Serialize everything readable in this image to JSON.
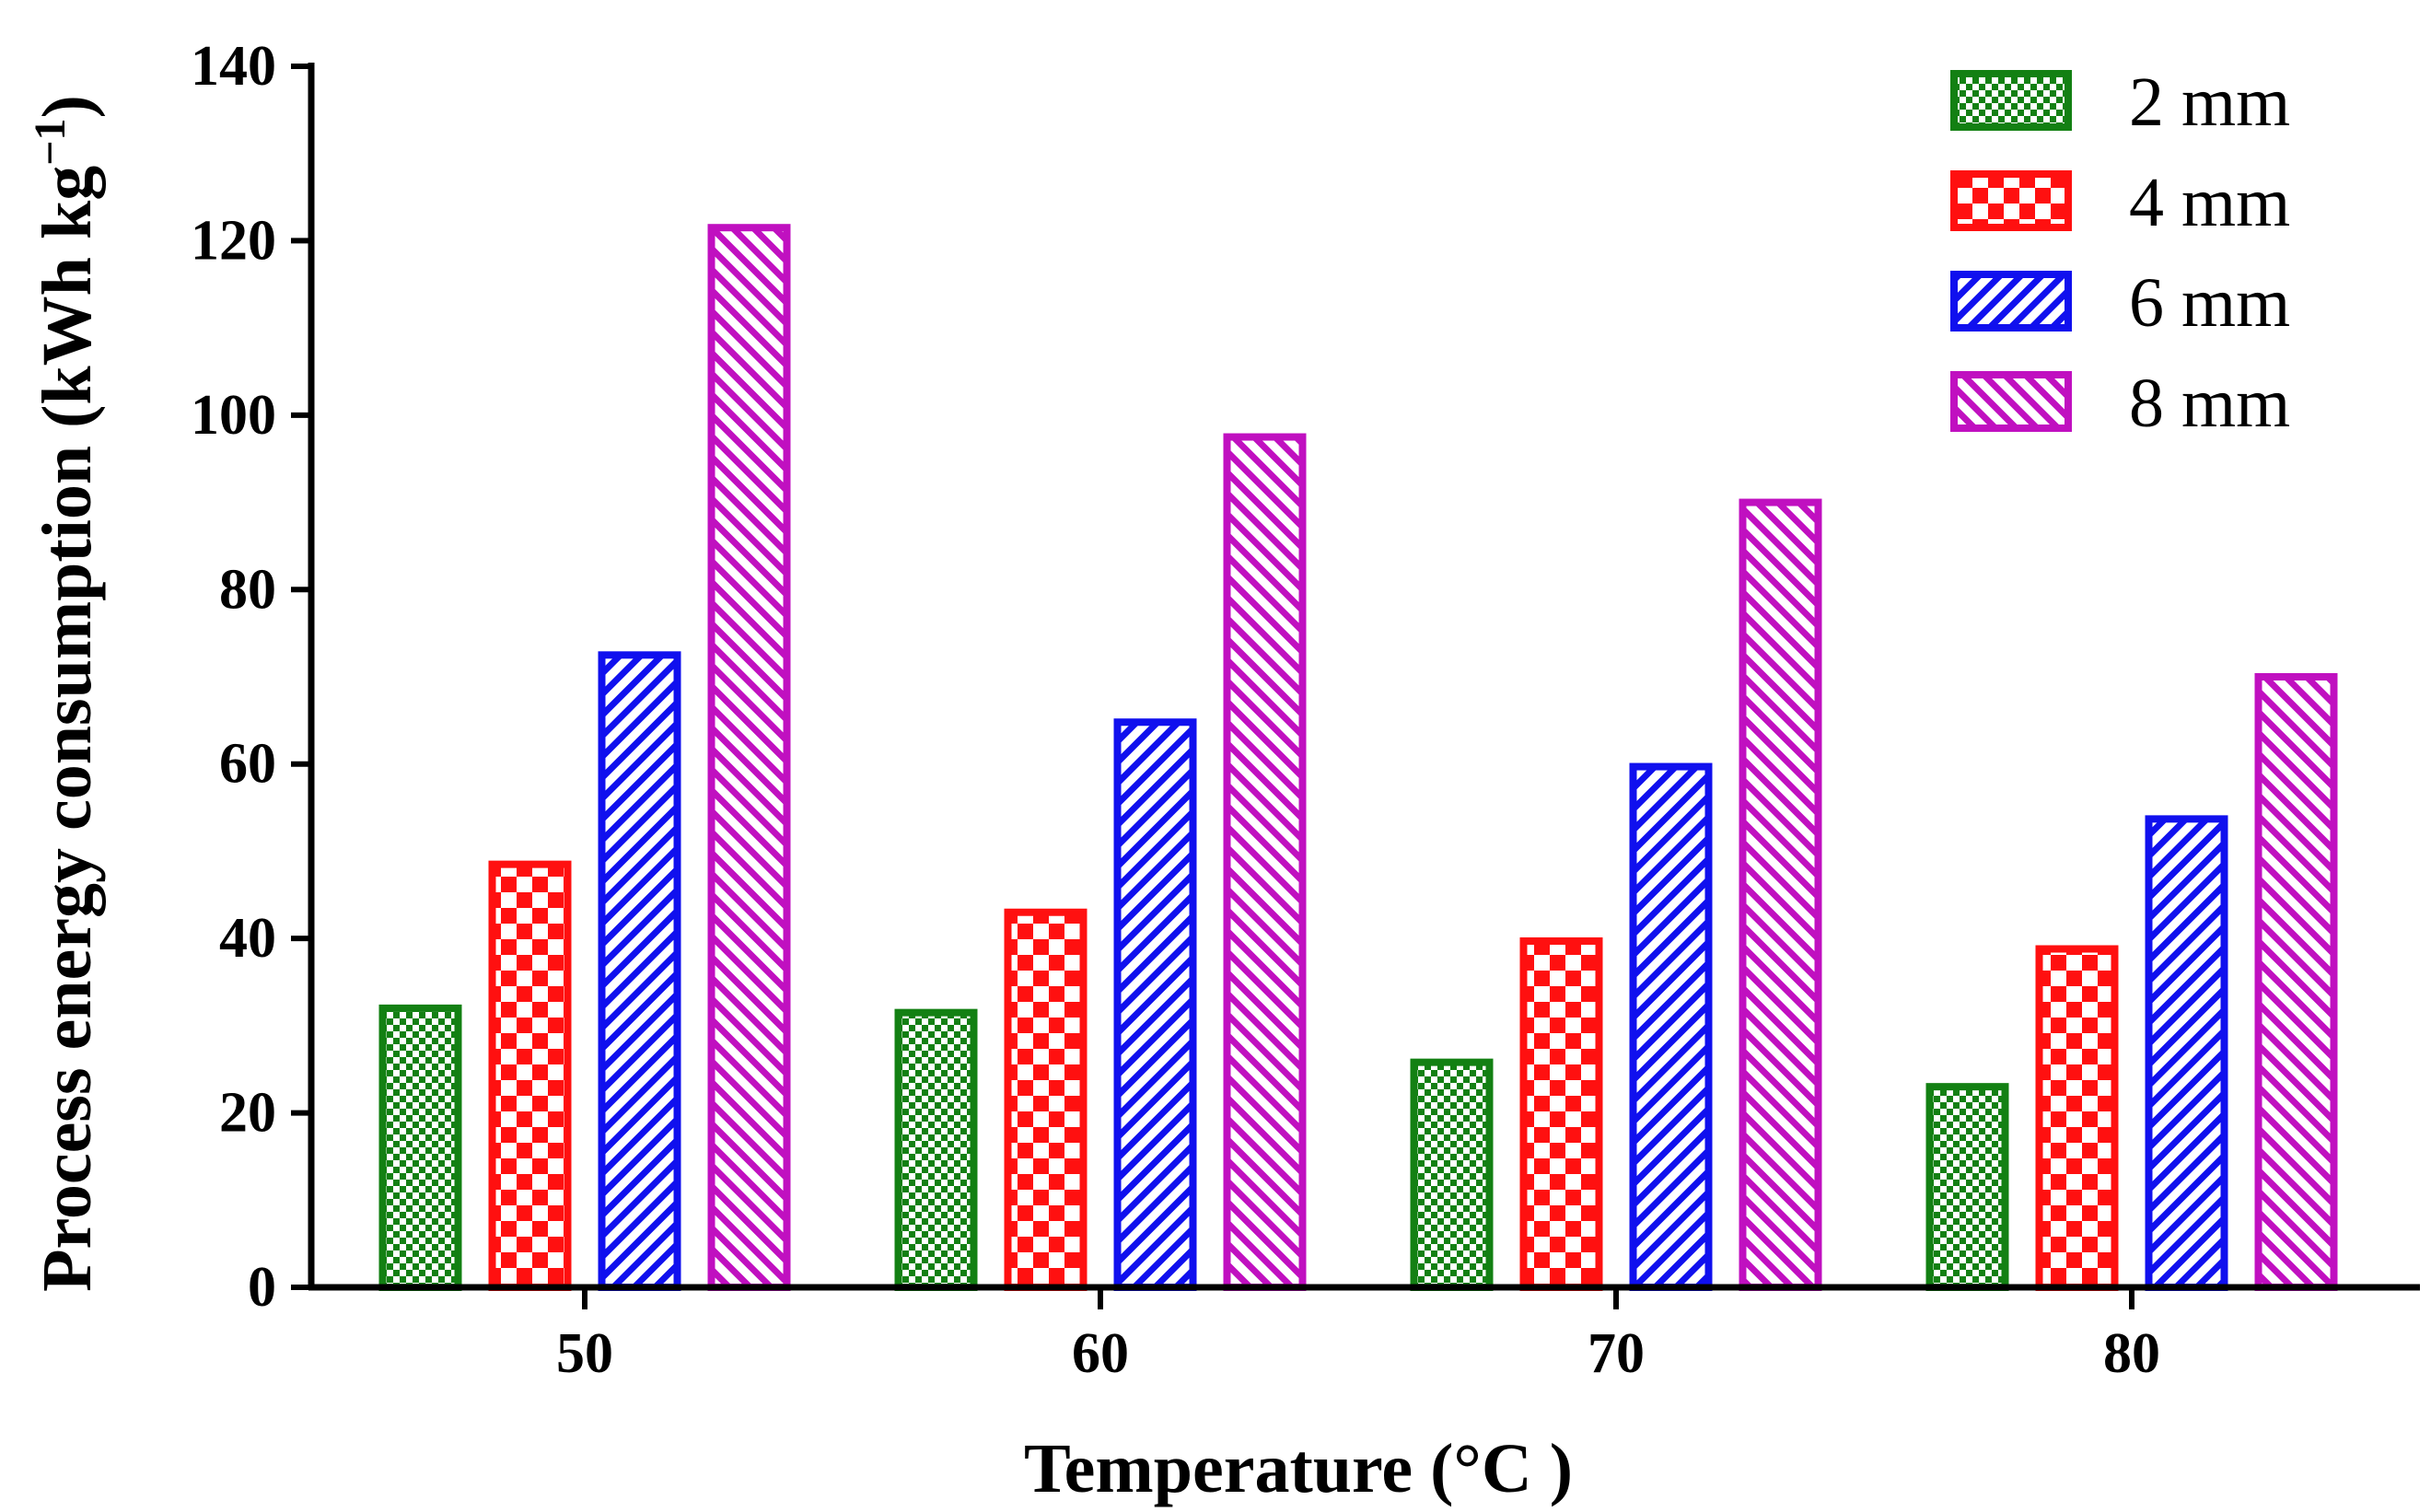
{
  "chart_data": {
    "type": "bar",
    "title": "",
    "xlabel": "Temperature (°C )",
    "ylabel": {
      "main": "Process energy consumption (kWh kg",
      "superscript": "−1",
      "close": ")"
    },
    "categories": [
      "50",
      "60",
      "70",
      "80"
    ],
    "ylim": [
      0,
      140
    ],
    "yticks": [
      "0",
      "20",
      "40",
      "60",
      "80",
      "100",
      "120",
      "140"
    ],
    "grid": false,
    "legend_position": "top-right",
    "series": [
      {
        "name": "2 mm",
        "color": "#138013",
        "pattern": "checker-small",
        "values": [
          32,
          31.5,
          25.8,
          23
        ]
      },
      {
        "name": "4 mm",
        "color": "#ff1010",
        "pattern": "checker-large",
        "values": [
          48.5,
          43,
          39.7,
          38.8
        ]
      },
      {
        "name": "6 mm",
        "color": "#1010ee",
        "pattern": "diagonal-up",
        "values": [
          72.5,
          64.8,
          59.7,
          53.7
        ]
      },
      {
        "name": "8 mm",
        "color": "#c010c0",
        "pattern": "diagonal-down",
        "values": [
          121.5,
          97.5,
          90,
          70
        ]
      }
    ]
  }
}
